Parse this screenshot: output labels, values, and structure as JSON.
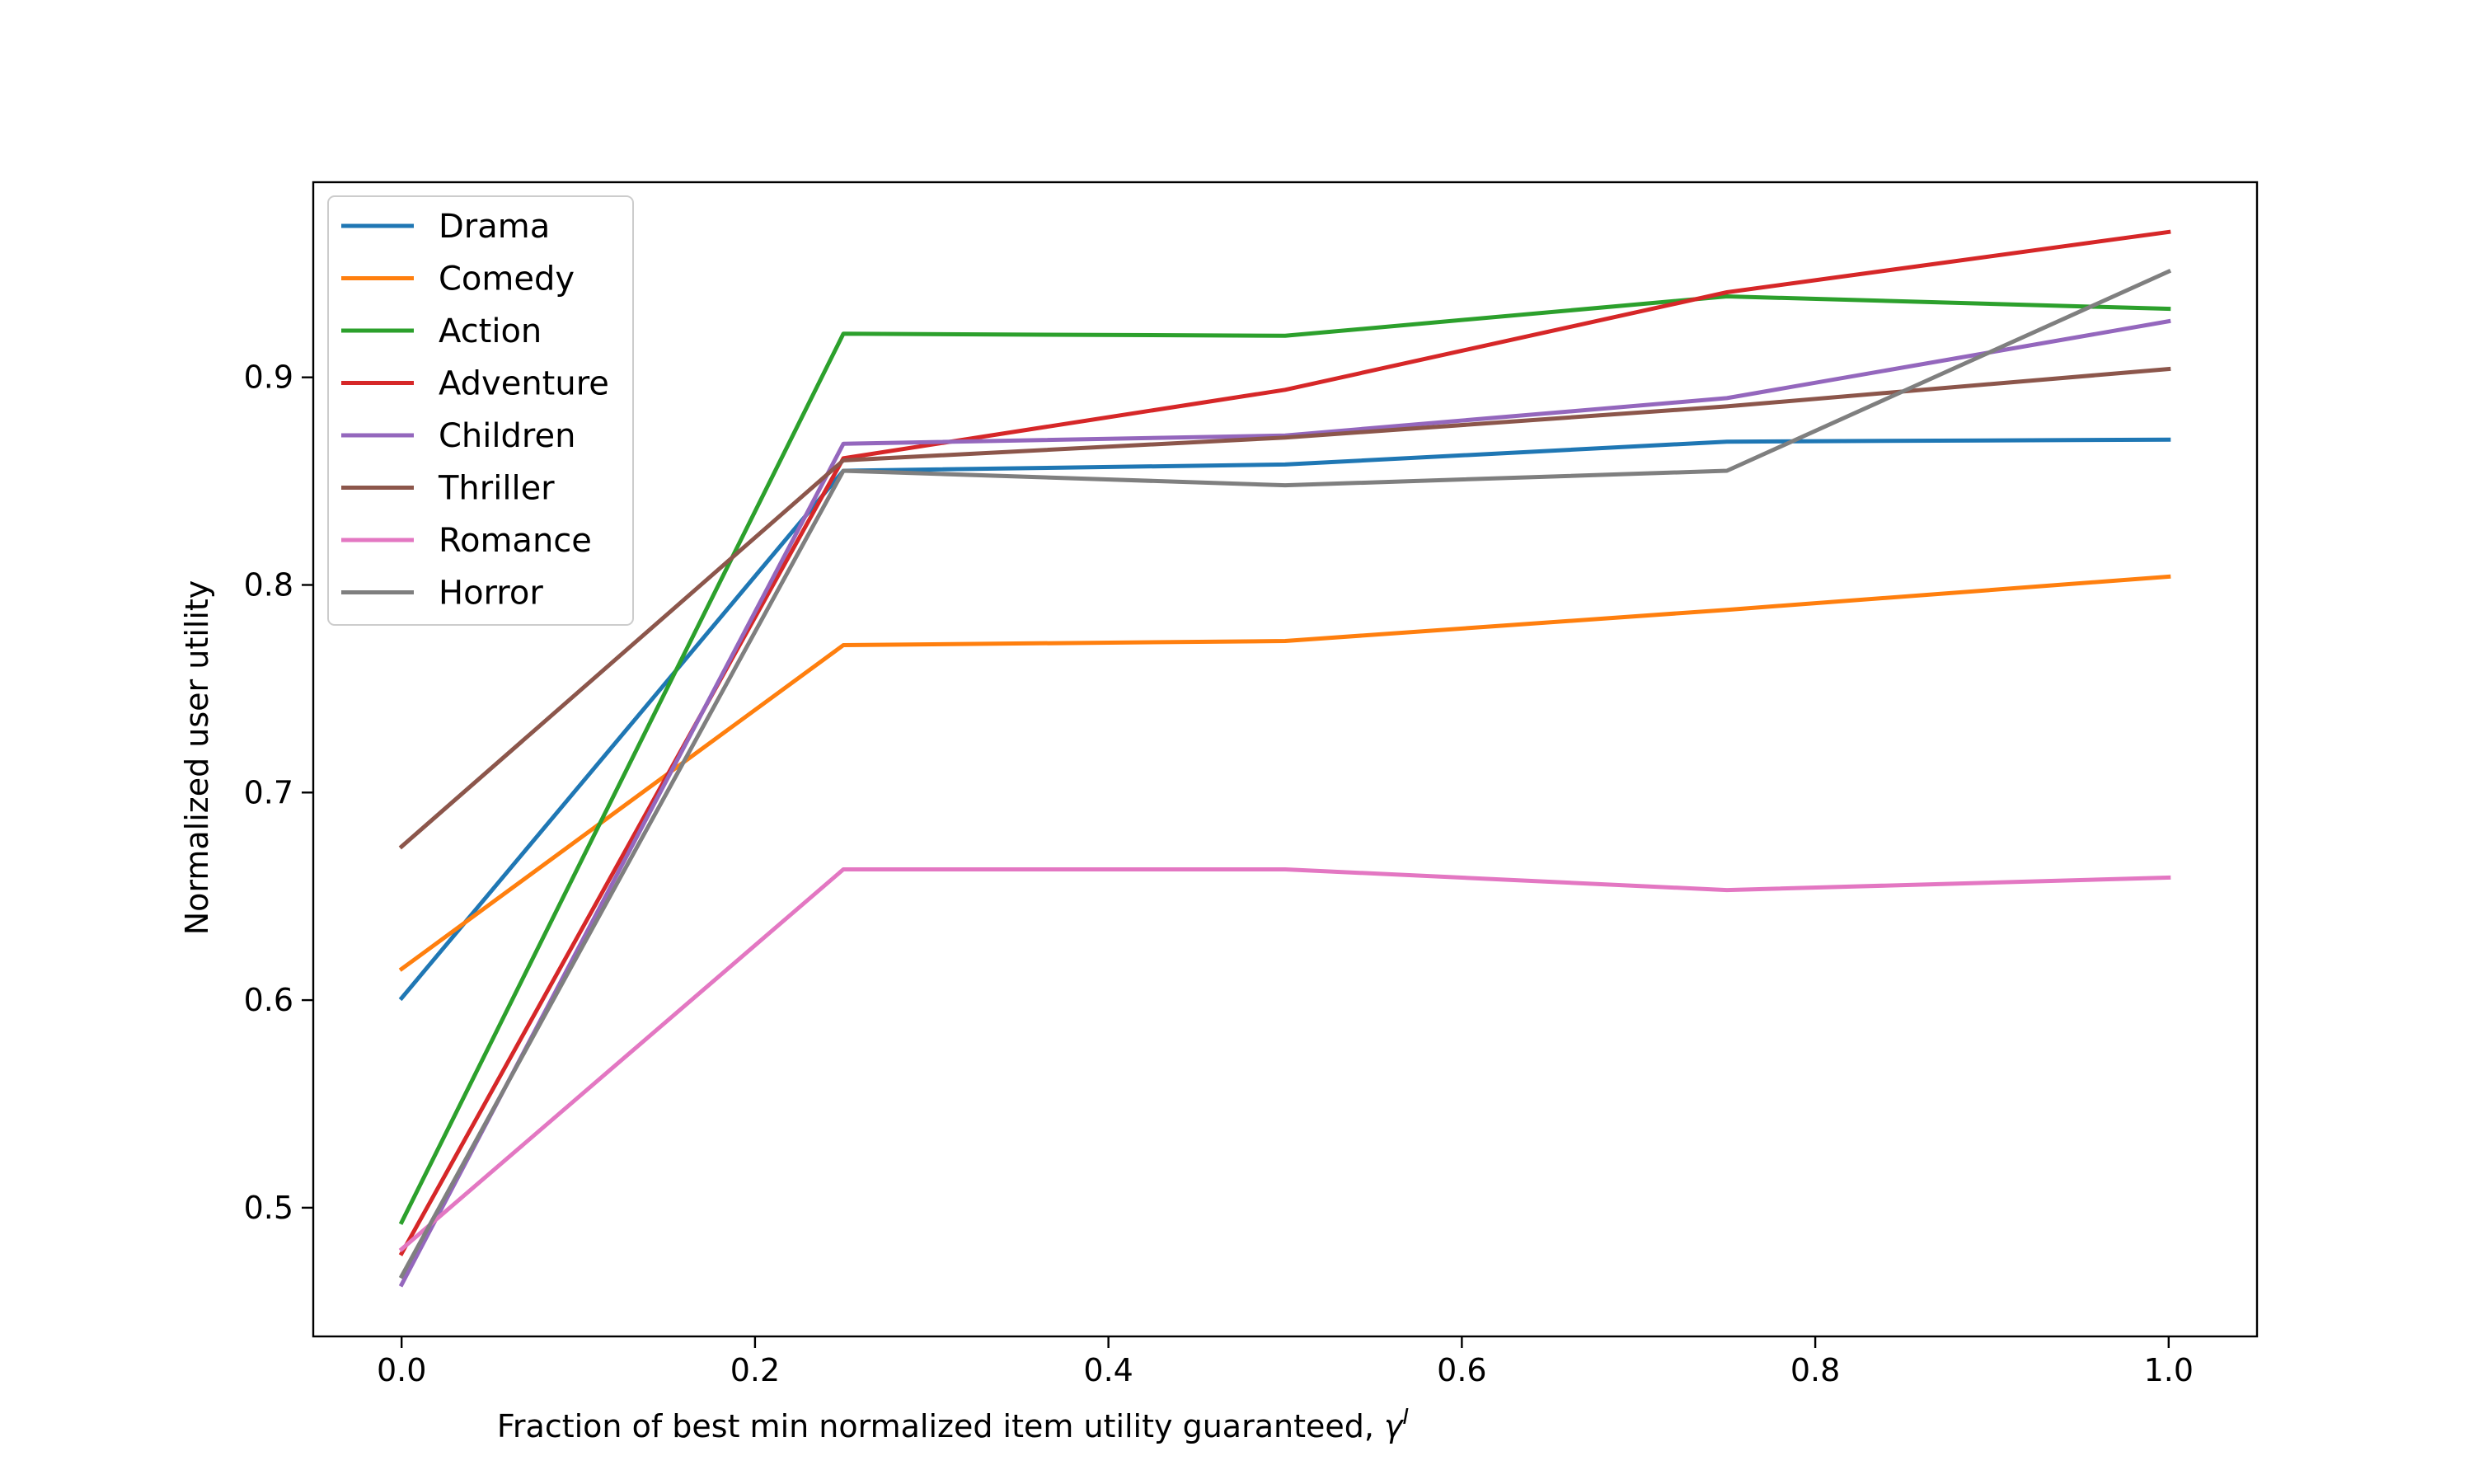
{
  "chart_data": {
    "type": "line",
    "title": "",
    "xlabel": "Fraction of best min normalized item utility guaranteed, ",
    "xlabel_symbol": "γ",
    "xlabel_superscript": "I",
    "ylabel": "Normalized user utility",
    "xlim": [
      -0.05,
      1.05
    ],
    "ylim": [
      0.438,
      0.994
    ],
    "xticks": [
      0.0,
      0.2,
      0.4,
      0.6,
      0.8,
      1.0
    ],
    "xtick_labels": [
      "0.0",
      "0.2",
      "0.4",
      "0.6",
      "0.8",
      "1.0"
    ],
    "yticks": [
      0.5,
      0.6,
      0.7,
      0.8,
      0.9
    ],
    "ytick_labels": [
      "0.5",
      "0.6",
      "0.7",
      "0.8",
      "0.9"
    ],
    "grid": false,
    "legend_position": "top-left",
    "x": [
      0.0,
      0.25,
      0.5,
      0.75,
      1.0
    ],
    "series": [
      {
        "name": "Drama",
        "color": "#1f77b4",
        "values": [
          0.601,
          0.855,
          0.858,
          0.869,
          0.87
        ]
      },
      {
        "name": "Comedy",
        "color": "#ff7f0e",
        "values": [
          0.615,
          0.771,
          0.773,
          0.788,
          0.804
        ]
      },
      {
        "name": "Action",
        "color": "#2ca02c",
        "values": [
          0.493,
          0.921,
          0.92,
          0.939,
          0.933
        ]
      },
      {
        "name": "Adventure",
        "color": "#d62728",
        "values": [
          0.478,
          0.861,
          0.894,
          0.941,
          0.97
        ]
      },
      {
        "name": "Children",
        "color": "#9467bd",
        "values": [
          0.463,
          0.868,
          0.872,
          0.89,
          0.927
        ]
      },
      {
        "name": "Thriller",
        "color": "#8c564b",
        "values": [
          0.674,
          0.86,
          0.871,
          0.886,
          0.904
        ]
      },
      {
        "name": "Romance",
        "color": "#e377c2",
        "values": [
          0.48,
          0.663,
          0.663,
          0.653,
          0.659
        ]
      },
      {
        "name": "Horror",
        "color": "#7f7f7f",
        "values": [
          0.467,
          0.855,
          0.848,
          0.855,
          0.951
        ]
      }
    ]
  }
}
